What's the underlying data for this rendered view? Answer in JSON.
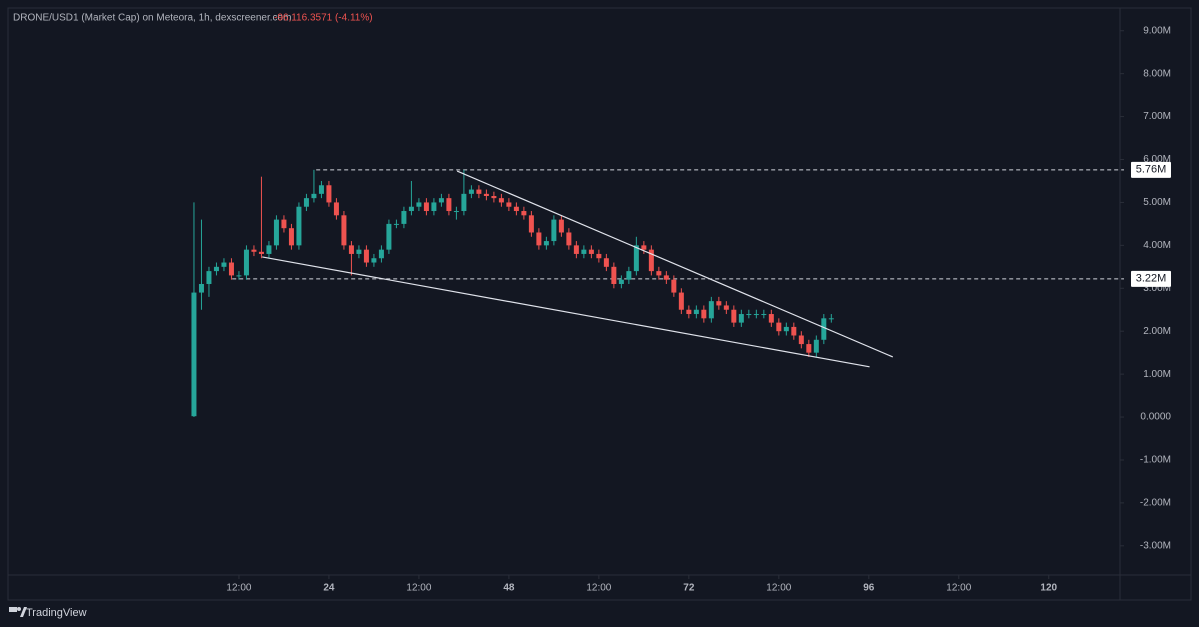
{
  "chart_data": {
    "type": "candlestick",
    "title": "DRONE/USD1 (Market Cap) on Meteora, 1h, dexscreener.com",
    "change": "-96,116.3571 (-4.11%)",
    "brand": "TradingView",
    "up_color": "#26a69a",
    "down_color": "#ef5350",
    "x": [
      6,
      7,
      8,
      9,
      10,
      11,
      12,
      13,
      14,
      15,
      16,
      17,
      18,
      19,
      20,
      21,
      22,
      23,
      24,
      25,
      26,
      27,
      28,
      29,
      30,
      31,
      32,
      33,
      34,
      35,
      36,
      37,
      38,
      39,
      40,
      41,
      42,
      43,
      44,
      45,
      46,
      47,
      48,
      49,
      50,
      51,
      52,
      53,
      54,
      55,
      56,
      57,
      58,
      59,
      60,
      61,
      62,
      63,
      64,
      65,
      66,
      67,
      68,
      69,
      70,
      71,
      72,
      73,
      74,
      75,
      76,
      77,
      78,
      79,
      80,
      81,
      82,
      83,
      84,
      85,
      86,
      87,
      88,
      89,
      90,
      91
    ],
    "open": [
      0.02,
      2.9,
      3.1,
      3.4,
      3.5,
      3.6,
      3.3,
      3.3,
      3.9,
      3.85,
      3.8,
      4.0,
      4.6,
      4.4,
      4.0,
      4.9,
      5.1,
      5.2,
      5.4,
      5.0,
      4.7,
      4.0,
      3.8,
      3.9,
      3.6,
      3.7,
      3.9,
      4.5,
      4.5,
      4.8,
      4.9,
      5.0,
      4.8,
      5.0,
      5.1,
      4.8,
      4.8,
      5.2,
      5.3,
      5.2,
      5.15,
      5.1,
      5.0,
      4.9,
      4.8,
      4.7,
      4.3,
      4.0,
      4.1,
      4.6,
      4.3,
      4.0,
      3.8,
      3.9,
      3.8,
      3.7,
      3.5,
      3.1,
      3.2,
      3.4,
      4.0,
      3.9,
      3.4,
      3.3,
      3.2,
      2.9,
      2.5,
      2.4,
      2.5,
      2.3,
      2.7,
      2.6,
      2.5,
      2.2,
      2.4,
      2.4,
      2.4,
      2.4,
      2.2,
      2.0,
      2.1,
      1.9,
      1.7,
      1.5,
      1.8,
      2.3
    ],
    "high": [
      5.0,
      4.6,
      3.5,
      3.6,
      3.7,
      3.7,
      3.4,
      4.0,
      4.0,
      5.6,
      4.1,
      4.7,
      4.7,
      4.5,
      5.0,
      5.2,
      5.76,
      5.5,
      5.5,
      5.1,
      4.8,
      4.1,
      4.0,
      4.0,
      3.8,
      4.0,
      4.6,
      4.6,
      4.9,
      5.5,
      5.1,
      5.1,
      5.1,
      5.2,
      5.2,
      4.9,
      5.76,
      5.4,
      5.4,
      5.3,
      5.25,
      5.2,
      5.1,
      5.0,
      4.9,
      4.8,
      4.4,
      4.2,
      4.7,
      4.7,
      4.4,
      4.1,
      4.0,
      4.0,
      3.9,
      3.8,
      3.6,
      3.3,
      3.5,
      4.2,
      4.1,
      4.0,
      3.5,
      3.4,
      3.3,
      3.0,
      2.6,
      2.6,
      2.6,
      2.8,
      2.8,
      2.7,
      2.6,
      2.5,
      2.5,
      2.5,
      2.5,
      2.5,
      2.3,
      2.2,
      2.2,
      2.0,
      1.8,
      1.9,
      2.4,
      2.4
    ],
    "low": [
      0.0,
      2.5,
      2.8,
      3.3,
      3.4,
      3.2,
      3.2,
      3.2,
      3.75,
      3.7,
      3.7,
      3.9,
      4.3,
      3.9,
      3.9,
      4.8,
      5.0,
      5.1,
      4.9,
      4.6,
      3.9,
      3.3,
      3.7,
      3.5,
      3.5,
      3.6,
      3.8,
      4.4,
      4.4,
      4.7,
      4.8,
      4.7,
      4.7,
      4.9,
      4.7,
      4.6,
      4.7,
      5.1,
      5.1,
      5.05,
      5.0,
      4.9,
      4.8,
      4.7,
      4.6,
      4.2,
      3.9,
      3.9,
      4.0,
      4.2,
      3.9,
      3.7,
      3.7,
      3.7,
      3.6,
      3.4,
      3.0,
      3.0,
      3.1,
      3.3,
      3.8,
      3.3,
      3.2,
      3.1,
      2.8,
      2.4,
      2.3,
      2.3,
      2.2,
      2.2,
      2.5,
      2.4,
      2.1,
      2.1,
      2.3,
      2.3,
      2.3,
      2.1,
      1.9,
      1.9,
      1.8,
      1.6,
      1.4,
      1.4,
      1.7,
      2.2
    ],
    "close": [
      2.9,
      3.1,
      3.4,
      3.5,
      3.6,
      3.3,
      3.3,
      3.9,
      3.85,
      3.8,
      4.0,
      4.6,
      4.4,
      4.0,
      4.9,
      5.1,
      5.2,
      5.4,
      5.0,
      4.7,
      4.0,
      3.8,
      3.9,
      3.6,
      3.7,
      3.9,
      4.5,
      4.5,
      4.8,
      4.9,
      5.0,
      4.8,
      5.0,
      5.1,
      4.8,
      4.8,
      5.2,
      5.3,
      5.2,
      5.15,
      5.1,
      5.0,
      4.9,
      4.8,
      4.7,
      4.3,
      4.0,
      4.1,
      4.6,
      4.3,
      4.0,
      3.8,
      3.9,
      3.8,
      3.7,
      3.5,
      3.1,
      3.2,
      3.4,
      4.0,
      3.9,
      3.4,
      3.3,
      3.2,
      2.9,
      2.5,
      2.4,
      2.5,
      2.3,
      2.7,
      2.6,
      2.5,
      2.2,
      2.4,
      2.4,
      2.4,
      2.4,
      2.2,
      2.0,
      2.1,
      1.9,
      1.7,
      1.5,
      1.8,
      2.3,
      2.3
    ],
    "xlim": [
      -18.8,
      129.5
    ],
    "xticks": [
      {
        "value": 12,
        "label": "12:00"
      },
      24,
      {
        "value": 36,
        "label": "12:00"
      },
      48,
      {
        "value": 60,
        "label": "12:00"
      },
      72,
      {
        "value": 84,
        "label": "12:00"
      },
      96,
      {
        "value": 108,
        "label": "12:00"
      },
      120
    ],
    "ylim": [
      -3.68,
      9.53
    ],
    "yticks": [
      {
        "value": 9,
        "label": "9.00M"
      },
      {
        "value": 8,
        "label": "8.00M"
      },
      {
        "value": 7,
        "label": "7.00M"
      },
      {
        "value": 6,
        "label": "6.00M"
      },
      {
        "value": 5,
        "label": "5.00M"
      },
      {
        "value": 4,
        "label": "4.00M"
      },
      {
        "value": 3,
        "label": "3.00M"
      },
      {
        "value": 2,
        "label": "2.00M"
      },
      {
        "value": 1,
        "label": "1.00M"
      },
      {
        "value": 0,
        "label": "0.0000"
      },
      {
        "value": -1,
        "label": "-1.00M"
      },
      {
        "value": -2,
        "label": "-2.00M"
      },
      {
        "value": -3,
        "label": "-3.00M"
      }
    ],
    "price_lines": [
      {
        "value": 5.76,
        "label": "5.76M",
        "x_start": 22.3
      },
      {
        "value": 3.22,
        "label": "3.22M",
        "x_start": 11.1
      }
    ],
    "trendlines": [
      {
        "x": [
          41.1,
          99.2
        ],
        "y": [
          5.73,
          1.4
        ]
      },
      {
        "x": [
          15.1,
          96.1
        ],
        "y": [
          3.73,
          1.17
        ]
      }
    ]
  }
}
